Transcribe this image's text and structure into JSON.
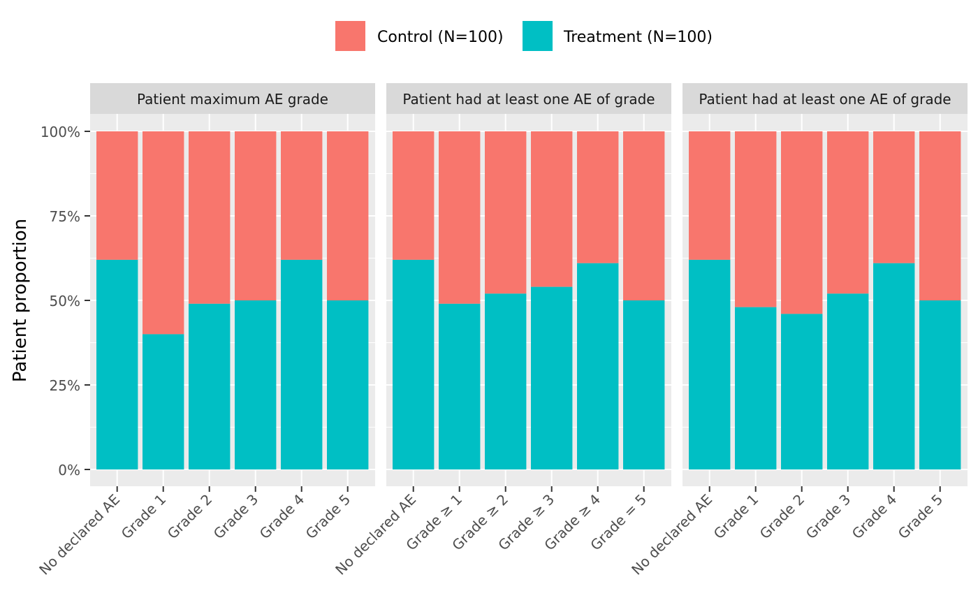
{
  "chart_data": {
    "type": "bar",
    "stacked": true,
    "legend": {
      "position": "top",
      "entries": [
        {
          "label": "Control (N=100)",
          "color": "#F8766D"
        },
        {
          "label": "Treatment (N=100)",
          "color": "#00BFC4"
        }
      ]
    },
    "ylabel": "Patient proportion",
    "ylim": [
      0,
      1
    ],
    "yticks": [
      {
        "value": 0,
        "label": "0%"
      },
      {
        "value": 0.25,
        "label": "25%"
      },
      {
        "value": 0.5,
        "label": "50%"
      },
      {
        "value": 0.75,
        "label": "75%"
      },
      {
        "value": 1,
        "label": "100%"
      }
    ],
    "grid": true,
    "panels": [
      {
        "title": "Patient maximum AE grade",
        "categories": [
          "No declared AE",
          "Grade 1",
          "Grade 2",
          "Grade 3",
          "Grade 4",
          "Grade 5"
        ],
        "treatment_share": [
          0.62,
          0.4,
          0.49,
          0.5,
          0.62,
          0.5
        ]
      },
      {
        "title": "Patient had at least one AE of grade",
        "categories": [
          "No declared AE",
          "Grade ≥ 1",
          "Grade ≥ 2",
          "Grade ≥ 3",
          "Grade ≥ 4",
          "Grade = 5"
        ],
        "treatment_share": [
          0.62,
          0.49,
          0.52,
          0.54,
          0.61,
          0.5
        ]
      },
      {
        "title": "Patient had at least one AE of grade",
        "categories": [
          "No declared AE",
          "Grade 1",
          "Grade 2",
          "Grade 3",
          "Grade 4",
          "Grade 5"
        ],
        "treatment_share": [
          0.62,
          0.48,
          0.46,
          0.52,
          0.61,
          0.5
        ]
      }
    ]
  }
}
